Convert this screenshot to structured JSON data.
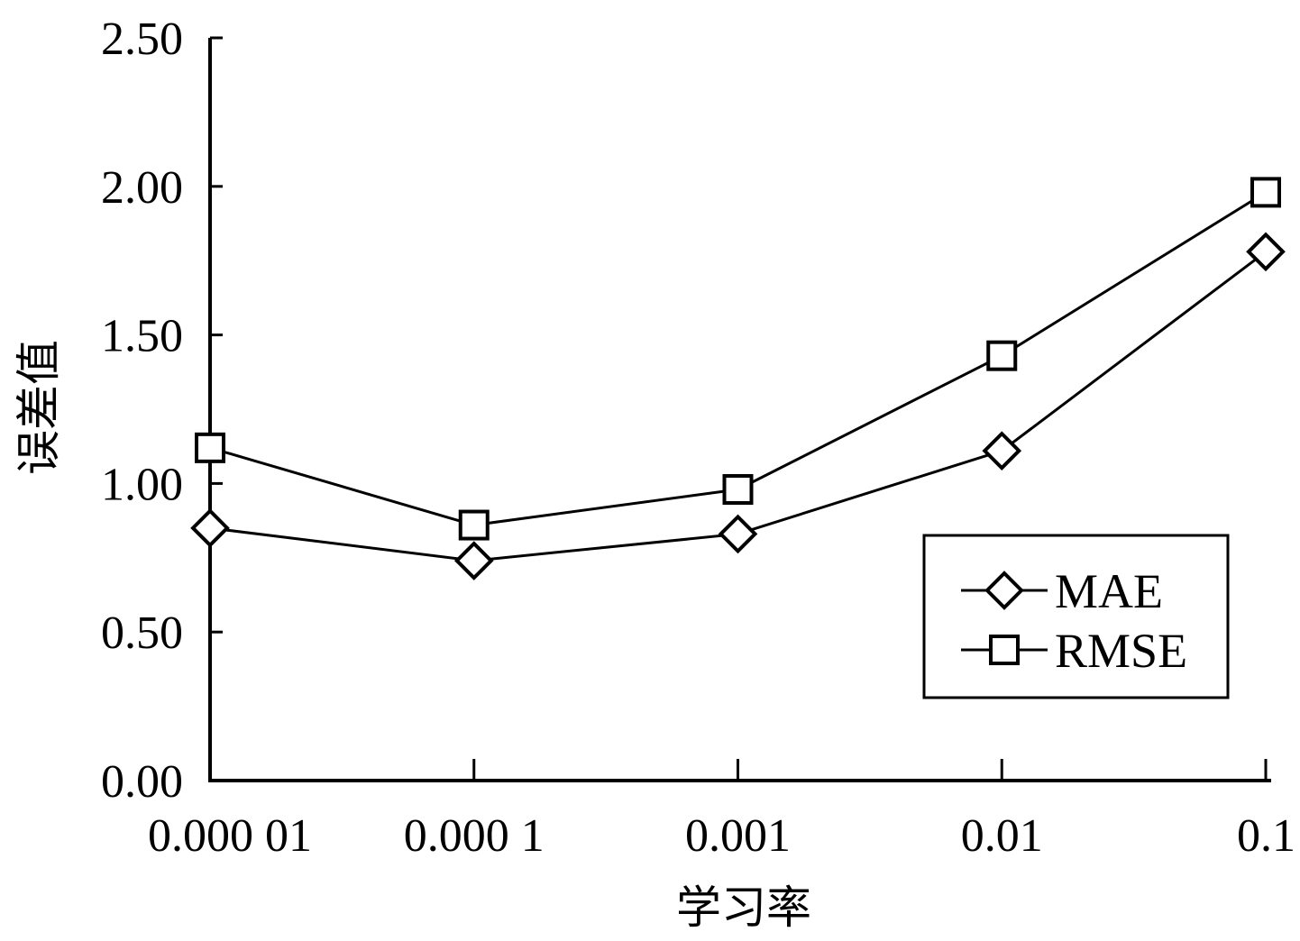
{
  "chart_data": {
    "type": "line",
    "title": "",
    "xlabel": "学习率",
    "ylabel": "误差值",
    "categories": [
      "0.000 01",
      "0.000 1",
      "0.001",
      "0.01",
      "0.1"
    ],
    "ylim": [
      0,
      2.5
    ],
    "yticks": [
      "0.00",
      "0.50",
      "1.00",
      "1.50",
      "2.00",
      "2.50"
    ],
    "grid": false,
    "legend_position": "bottom-right",
    "series": [
      {
        "name": "MAE",
        "marker": "diamond",
        "values": [
          0.85,
          0.74,
          0.83,
          1.11,
          1.78
        ]
      },
      {
        "name": "RMSE",
        "marker": "square",
        "values": [
          1.12,
          0.86,
          0.98,
          1.43,
          1.98
        ]
      }
    ]
  }
}
